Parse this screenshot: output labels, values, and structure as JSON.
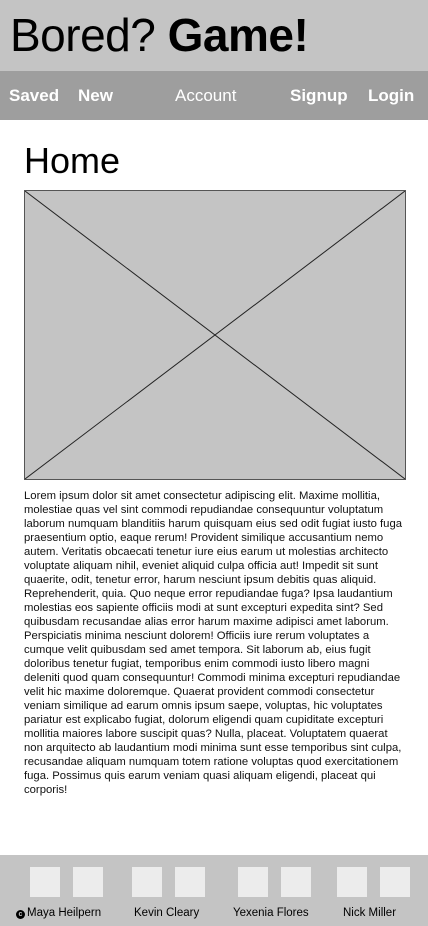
{
  "header": {
    "title_regular": "Bored?",
    "title_bold": "Game!"
  },
  "nav": {
    "saved": "Saved",
    "new": "New",
    "account": "Account",
    "signup": "Signup",
    "login": "Login"
  },
  "main": {
    "heading": "Home",
    "image_placeholder": "image-placeholder",
    "body_text": "Lorem ipsum dolor sit amet consectetur adipiscing elit. Maxime mollitia, molestiae quas vel sint commodi repudiandae consequuntur voluptatum laborum numquam blanditiis harum quisquam eius sed odit fugiat iusto fuga praesentium optio, eaque rerum! Provident similique accusantium nemo autem. Veritatis obcaecati tenetur iure eius earum ut molestias architecto voluptate aliquam nihil, eveniet aliquid culpa officia aut! Impedit sit sunt quaerite, odit, tenetur error, harum nesciunt ipsum debitis quas aliquid. Reprehenderit, quia. Quo neque error repudiandae fuga? Ipsa laudantium molestias eos sapiente officiis modi at sunt excepturi expedita sint? Sed quibusdam recusandae alias error harum maxime adipisci amet laborum. Perspiciatis minima nesciunt dolorem! Officiis iure rerum voluptates a cumque velit quibusdam sed amet tempora. Sit laborum ab, eius fugit doloribus tenetur fugiat, temporibus enim commodi iusto libero magni deleniti quod quam consequuntur! Commodi minima excepturi repudiandae velit hic maxime doloremque. Quaerat provident commodi consectetur veniam similique ad earum omnis ipsum saepe, voluptas, hic voluptates pariatur est explicabo fugiat, dolorum eligendi quam cupiditate excepturi mollitia maiores labore suscipit quas? Nulla, placeat. Voluptatem quaerat non arquitecto ab laudantium modi minima sunt esse temporibus sint culpa, recusandae aliquam numquam totem ratione voluptas quod exercitationem fuga. Possimus quis earum veniam quasi aliquam eligendi, placeat qui corporis!"
  },
  "footer": {
    "copyright_icon": "copyright-icon",
    "copyright_symbol": "c",
    "names": [
      "Maya Heilpern",
      "Kevin Cleary",
      "Yexenia Flores",
      "Nick Miller"
    ],
    "avatar_color": "#ececec"
  },
  "colors": {
    "header_bg": "#c4c4c4",
    "nav_bg": "#9e9e9e",
    "nav_text": "#ffffff",
    "footer_bg": "#c4c4c4"
  }
}
